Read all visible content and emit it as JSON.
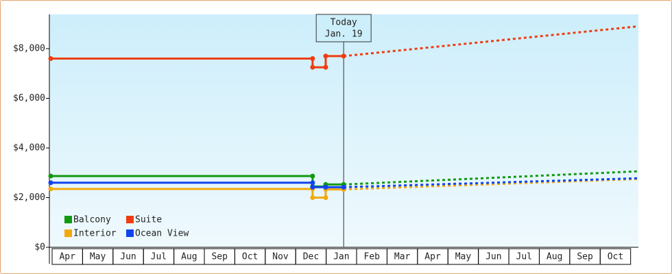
{
  "chart_data": {
    "type": "line",
    "xlim": [
      -0.045,
      19.3
    ],
    "ylim": [
      0,
      9380
    ],
    "xticks": [
      {
        "value": 0.5,
        "label": "Apr"
      },
      {
        "value": 1.5,
        "label": "May"
      },
      {
        "value": 2.5,
        "label": "Jun"
      },
      {
        "value": 3.5,
        "label": "Jul"
      },
      {
        "value": 4.5,
        "label": "Aug"
      },
      {
        "value": 5.5,
        "label": "Sep"
      },
      {
        "value": 6.5,
        "label": "Oct"
      },
      {
        "value": 7.5,
        "label": "Nov"
      },
      {
        "value": 8.5,
        "label": "Dec"
      },
      {
        "value": 9.5,
        "label": "Jan"
      },
      {
        "value": 10.5,
        "label": "Feb"
      },
      {
        "value": 11.5,
        "label": "Mar"
      },
      {
        "value": 12.5,
        "label": "Apr"
      },
      {
        "value": 13.5,
        "label": "May"
      },
      {
        "value": 14.5,
        "label": "Jun"
      },
      {
        "value": 15.5,
        "label": "Jul"
      },
      {
        "value": 16.5,
        "label": "Aug"
      },
      {
        "value": 17.5,
        "label": "Sep"
      },
      {
        "value": 18.5,
        "label": "Oct"
      }
    ],
    "yticks": [
      {
        "value": 0,
        "label": "$0"
      },
      {
        "value": 2000,
        "label": "$2,000"
      },
      {
        "value": 4000,
        "label": "$4,000"
      },
      {
        "value": 6000,
        "label": "$6,000"
      },
      {
        "value": 8000,
        "label": "$8,000"
      }
    ],
    "annotation": {
      "lines": [
        "Today",
        "Jan. 19"
      ],
      "x": 9.62
    },
    "series": [
      {
        "name": "Balcony",
        "color": "#119911",
        "x": [
          0,
          8.6,
          8.6,
          9.03,
          9.03,
          9.62
        ],
        "values": [
          2870,
          2870,
          2450,
          2450,
          2530,
          2530
        ],
        "projection_x": [
          9.62,
          19.3
        ],
        "projection_values": [
          2530,
          3060
        ]
      },
      {
        "name": "Suite",
        "color": "#ee3d11",
        "x": [
          0,
          8.6,
          8.6,
          9.03,
          9.03,
          9.62
        ],
        "values": [
          7600,
          7600,
          7250,
          7250,
          7700,
          7700
        ],
        "projection_x": [
          9.62,
          19.3
        ],
        "projection_values": [
          7700,
          8900
        ]
      },
      {
        "name": "Interior",
        "color": "#f2a90f",
        "x": [
          0,
          8.6,
          8.6,
          9.03,
          9.03,
          9.62
        ],
        "values": [
          2350,
          2350,
          2000,
          2000,
          2330,
          2330
        ],
        "projection_x": [
          9.62,
          19.3
        ],
        "projection_values": [
          2330,
          2750
        ]
      },
      {
        "name": "Ocean View",
        "color": "#1144ee",
        "x": [
          0,
          8.6,
          8.6,
          9.03,
          9.62
        ],
        "values": [
          2600,
          2600,
          2420,
          2420,
          2420
        ],
        "projection_x": [
          9.62,
          19.3
        ],
        "projection_values": [
          2420,
          2780
        ]
      }
    ]
  }
}
